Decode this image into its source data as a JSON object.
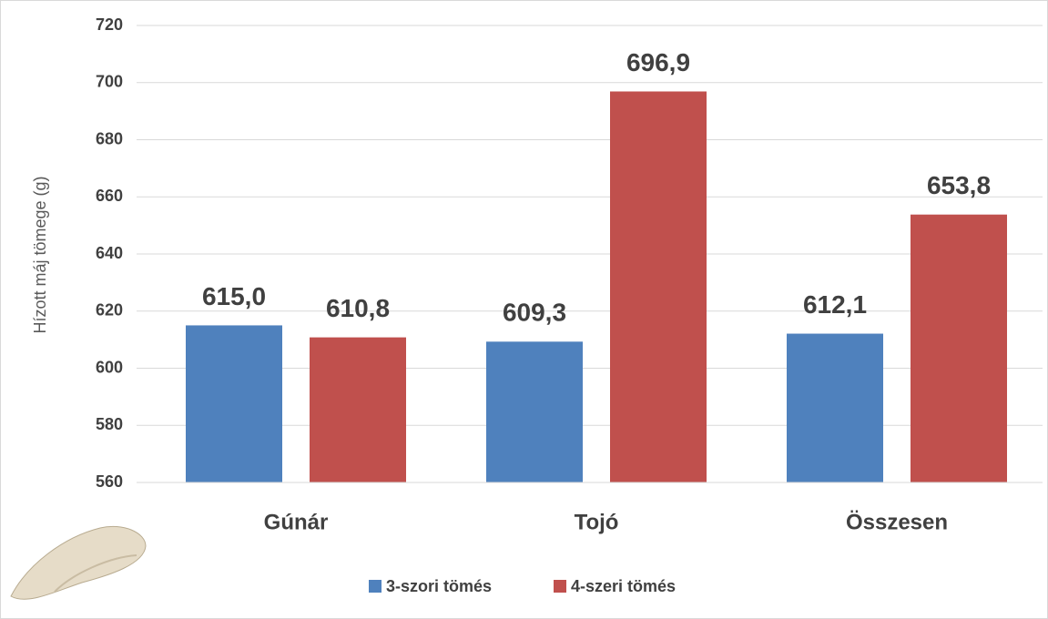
{
  "chart_data": {
    "type": "bar",
    "y_label": "Hízott máj tömege (g)",
    "categories": [
      "Gúnár",
      "Tojó",
      "Összesen"
    ],
    "series": [
      {
        "name": "3-szori tömés",
        "color": "#4f81bd",
        "values": [
          615.0,
          609.3,
          612.1
        ],
        "value_labels": [
          "615,0",
          "609,3",
          "612,1"
        ]
      },
      {
        "name": "4-szeri tömés",
        "color": "#c0504d",
        "values": [
          610.8,
          696.9,
          653.8
        ],
        "value_labels": [
          "610,8",
          "696,9",
          "653,8"
        ]
      }
    ],
    "ylim": [
      560,
      720
    ],
    "yticks": [
      560,
      580,
      600,
      620,
      640,
      660,
      680,
      700,
      720
    ],
    "grid": true,
    "legend": "bottom"
  }
}
